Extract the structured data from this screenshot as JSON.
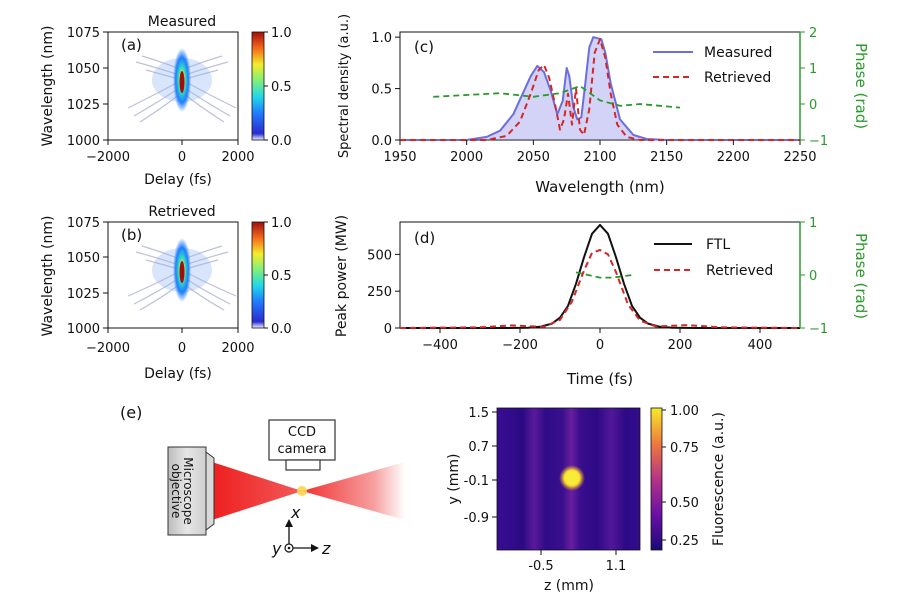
{
  "chart_data": [
    {
      "panel": "(a)",
      "type": "heatmap",
      "title": "Measured",
      "xlabel": "Delay (fs)",
      "ylabel": "Wavelength (nm)",
      "xlim": [
        -2000,
        2000
      ],
      "ylim": [
        1000,
        1075
      ],
      "xticks": [
        "−2000",
        "0",
        "2000"
      ],
      "yticks": [
        "1000",
        "1025",
        "1050",
        "1075"
      ],
      "colorbar": {
        "range": [
          0.0,
          1.0
        ],
        "ticks": [
          "0.0",
          "0.5",
          "1.0"
        ],
        "colormap": "jet"
      },
      "features": {
        "peak": [
          0,
          1040
        ],
        "peak_value": 1.0
      }
    },
    {
      "panel": "(b)",
      "type": "heatmap",
      "title": "Retrieved",
      "xlabel": "Delay (fs)",
      "ylabel": "Wavelength (nm)",
      "xlim": [
        -2000,
        2000
      ],
      "ylim": [
        1000,
        1075
      ],
      "xticks": [
        "−2000",
        "0",
        "2000"
      ],
      "yticks": [
        "1000",
        "1025",
        "1050",
        "1075"
      ],
      "colorbar": {
        "range": [
          0.0,
          1.0
        ],
        "ticks": [
          "0.0",
          "0.5",
          "1.0"
        ],
        "colormap": "jet"
      },
      "features": {
        "peak": [
          0,
          1040
        ],
        "peak_value": 1.0
      }
    },
    {
      "panel": "(c)",
      "type": "line",
      "xlabel": "Wavelength (nm)",
      "ylabel": "Spectral density (a.u.)",
      "y2label": "Phase (rad)",
      "xlim": [
        1950,
        2250
      ],
      "ylim": [
        0,
        1.05
      ],
      "y2lim": [
        -1,
        2
      ],
      "xticks": [
        "1950",
        "2000",
        "2050",
        "2100",
        "2150",
        "2200",
        "2250"
      ],
      "yticks": [
        "0.0",
        "0.5",
        "1.0"
      ],
      "y2ticks": [
        "−1",
        "0",
        "1",
        "2"
      ],
      "legend": "top-right",
      "series": [
        {
          "name": "Measured",
          "color": "#6b6ee0",
          "fill": true,
          "x": [
            1950,
            2000,
            2015,
            2025,
            2035,
            2042,
            2048,
            2053,
            2058,
            2063,
            2068,
            2072,
            2075,
            2077,
            2080,
            2083,
            2086,
            2089,
            2092,
            2095,
            2098,
            2101,
            2104,
            2108,
            2115,
            2125,
            2135,
            2150,
            2250
          ],
          "y": [
            0,
            0.0,
            0.03,
            0.09,
            0.25,
            0.45,
            0.62,
            0.72,
            0.66,
            0.48,
            0.25,
            0.38,
            0.7,
            0.62,
            0.32,
            0.2,
            0.22,
            0.55,
            0.9,
            1.0,
            0.99,
            0.98,
            0.85,
            0.55,
            0.2,
            0.05,
            0.01,
            0.0,
            0
          ]
        },
        {
          "name": "Retrieved",
          "color": "#d62728",
          "dashed": true,
          "x": [
            1950,
            2015,
            2030,
            2040,
            2048,
            2054,
            2058,
            2062,
            2067,
            2070,
            2073,
            2076,
            2079,
            2082,
            2085,
            2088,
            2092,
            2096,
            2100,
            2104,
            2108,
            2113,
            2120,
            2130,
            2250
          ],
          "y": [
            0,
            0.0,
            0.04,
            0.18,
            0.45,
            0.68,
            0.73,
            0.6,
            0.3,
            0.1,
            0.2,
            0.45,
            0.15,
            0.5,
            0.1,
            0.05,
            0.3,
            0.85,
            0.98,
            0.8,
            0.45,
            0.15,
            0.03,
            0.0,
            0
          ]
        },
        {
          "name": "Phase",
          "axis": "right",
          "color": "#2a9a2a",
          "dashed": true,
          "x": [
            1975,
            2000,
            2025,
            2050,
            2070,
            2085,
            2100,
            2115,
            2130,
            2145,
            2160
          ],
          "y": [
            0.2,
            0.25,
            0.3,
            0.2,
            0.3,
            0.5,
            0.1,
            -0.05,
            0.0,
            -0.05,
            -0.1
          ]
        }
      ]
    },
    {
      "panel": "(d)",
      "type": "line",
      "xlabel": "Time (fs)",
      "ylabel": "Peak power (MW)",
      "y2label": "Phase (rad)",
      "xlim": [
        -500,
        500
      ],
      "ylim": [
        0,
        720
      ],
      "y2lim": [
        -1,
        1
      ],
      "xticks": [
        "−400",
        "−200",
        "0",
        "200",
        "400"
      ],
      "yticks": [
        "0",
        "250",
        "500"
      ],
      "y2ticks": [
        "−1",
        "0",
        "1"
      ],
      "legend": "top-right",
      "series": [
        {
          "name": "FTL",
          "color": "#111111",
          "x": [
            -500,
            -240,
            -180,
            -150,
            -120,
            -100,
            -80,
            -60,
            -40,
            -20,
            0,
            20,
            40,
            60,
            80,
            100,
            120,
            150,
            180,
            240,
            500
          ],
          "y": [
            0,
            0,
            2,
            8,
            30,
            70,
            150,
            300,
            480,
            640,
            700,
            640,
            480,
            300,
            150,
            70,
            30,
            8,
            2,
            0,
            0
          ]
        },
        {
          "name": "Retrieved",
          "color": "#d62728",
          "dashed": true,
          "x": [
            -500,
            -300,
            -220,
            -180,
            -140,
            -100,
            -70,
            -40,
            -20,
            0,
            20,
            40,
            70,
            100,
            140,
            180,
            220,
            300,
            500
          ],
          "y": [
            0,
            5,
            18,
            12,
            8,
            55,
            180,
            390,
            510,
            530,
            500,
            380,
            160,
            50,
            10,
            15,
            20,
            5,
            0
          ]
        },
        {
          "name": "Phase",
          "axis": "right",
          "color": "#2a9a2a",
          "dashed": true,
          "x": [
            -60,
            -30,
            0,
            30,
            60,
            80
          ],
          "y": [
            0.05,
            0.0,
            -0.05,
            -0.05,
            -0.02,
            0.0
          ]
        }
      ]
    },
    {
      "panel": "(e)",
      "type": "heatmap",
      "xlabel": "z (mm)",
      "ylabel": "y (mm)",
      "xlim": [
        -1.4,
        1.6
      ],
      "ylim": [
        -1.55,
        1.55
      ],
      "xticks": [
        "-0.5",
        "1.1"
      ],
      "yticks": [
        "1.5",
        "0.7",
        "-0.1",
        "-0.9"
      ],
      "colorbar": {
        "label": "Fluorescence (a.u.)",
        "range": [
          0.08,
          1.0
        ],
        "ticks": [
          "0.25",
          "0.50",
          "0.75",
          "1.00"
        ],
        "colormap": "plasma"
      },
      "features": {
        "spot": [
          0.3,
          -0.1
        ],
        "spot_value": 1.0
      }
    }
  ],
  "schematic": {
    "panel_label": "(e)",
    "camera_label_1": "CCD",
    "camera_label_2": "camera",
    "objective_label_1": "Microscope",
    "objective_label_2": "objective",
    "axis_x": "x",
    "axis_y": "y",
    "axis_z": "z"
  },
  "colors": {
    "measured": "#6b6ee0",
    "retrieved": "#d62728",
    "ftl": "#111111",
    "phase": "#2a9a2a",
    "beam": "#ee2a2a",
    "focus": "#ffd24a"
  }
}
